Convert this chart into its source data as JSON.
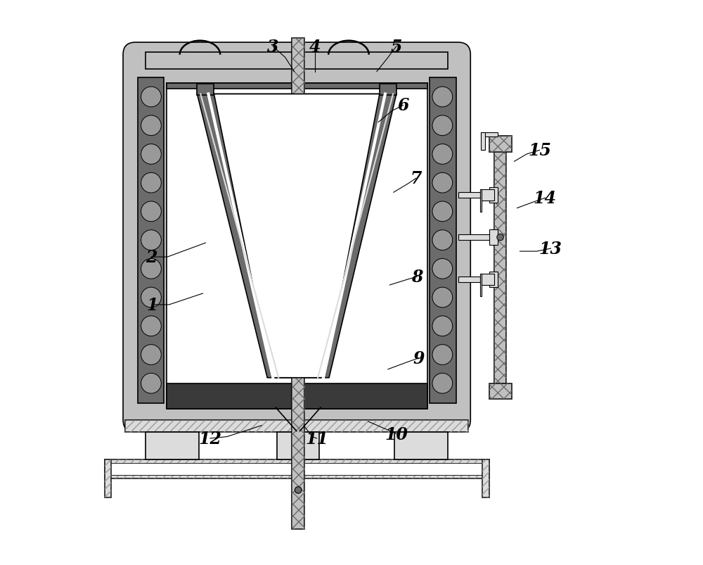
{
  "bg_color": "#ffffff",
  "lc": "#000000",
  "gray_dark": "#6b6b6b",
  "gray_med": "#999999",
  "gray_light": "#c0c0c0",
  "gray_vlight": "#dcdcdc",
  "gray_wall": "#888888",
  "dark_fill": "#3a3a3a",
  "white": "#ffffff",
  "lw": 1.2,
  "lw_thin": 0.8,
  "lw_thick": 1.8
}
